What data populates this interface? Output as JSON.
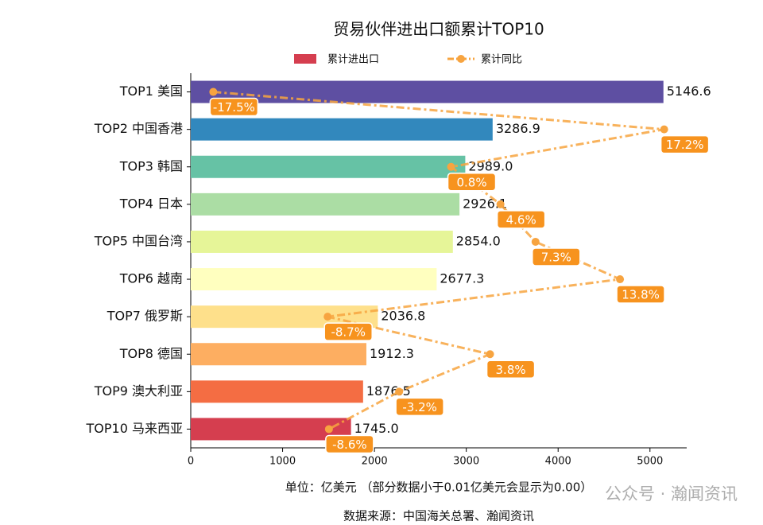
{
  "chart_data": {
    "type": "bar",
    "orientation": "horizontal",
    "title": "贸易伙伴进出口额累计TOP10",
    "categories": [
      "TOP1 美国",
      "TOP2 中国香港",
      "TOP3 韩国",
      "TOP4 日本",
      "TOP5 中国台湾",
      "TOP6 越南",
      "TOP7 俄罗斯",
      "TOP8 德国",
      "TOP9 澳大利亚",
      "TOP10 马来西亚"
    ],
    "series": [
      {
        "name": "累计进出口",
        "type": "bar",
        "color": "#d53e4f",
        "colors": [
          "#5e4fa2",
          "#3288bd",
          "#66c2a5",
          "#abdda4",
          "#e6f598",
          "#ffffbf",
          "#fee08b",
          "#fdae61",
          "#f46d43",
          "#d53e4f"
        ],
        "values": [
          5146.6,
          3286.9,
          2989.0,
          2926.1,
          2854.0,
          2677.3,
          2036.8,
          1912.3,
          1876.5,
          1745.0
        ],
        "value_labels": [
          "5146.6",
          "3286.9",
          "2989.0",
          "2926.1",
          "2854.0",
          "2677.3",
          "2036.8",
          "1912.3",
          "1876.5",
          "1745.0"
        ]
      },
      {
        "name": "累计同比",
        "type": "line",
        "axis": "x2",
        "color": "#f7a440",
        "values": [
          -17.5,
          17.2,
          0.8,
          4.6,
          7.3,
          13.8,
          -8.7,
          3.8,
          -3.2,
          -8.6
        ],
        "value_labels": [
          "-17.5%",
          "17.2%",
          "0.8%",
          "4.6%",
          "7.3%",
          "13.8%",
          "-8.7%",
          "3.8%",
          "-3.2%",
          "-8.6%"
        ]
      }
    ],
    "xlim": [
      0,
      5400
    ],
    "xticks": [
      0,
      1000,
      2000,
      3000,
      4000,
      5000
    ],
    "x2lim": [
      -19.235,
      18.935
    ],
    "legend": "top",
    "notes": [
      "单位：亿美元  （部分数据小于0.01亿美元会显示为0.00）",
      "数据来源：中国海关总署、瀚闻资讯"
    ],
    "watermark": "公众号 · 瀚闻资讯"
  }
}
